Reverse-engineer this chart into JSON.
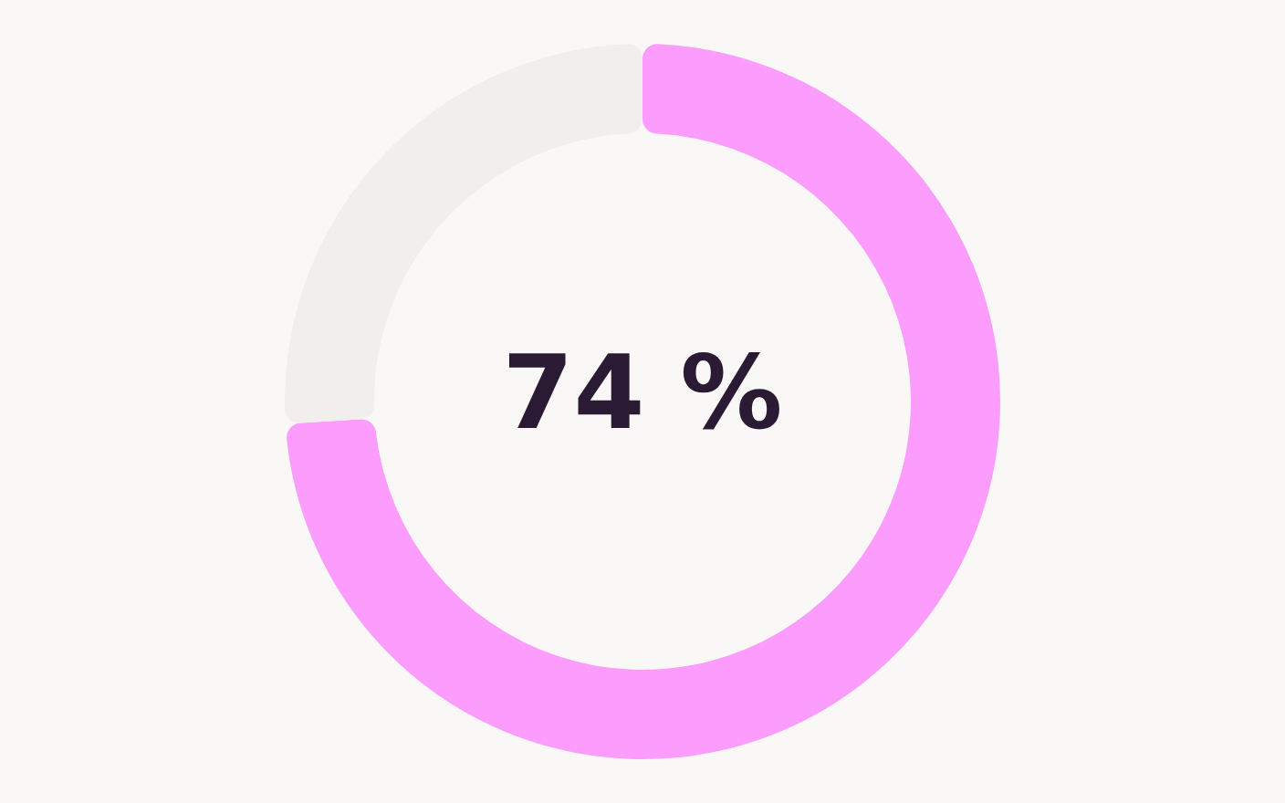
{
  "chart_data": {
    "type": "donut",
    "categories": [
      null,
      null
    ],
    "values": [
      74,
      26
    ],
    "colors": [
      "#fc9cfc",
      "#f2eeed"
    ],
    "value_labels": [
      "74 %",
      null
    ],
    "legend": false
  }
}
